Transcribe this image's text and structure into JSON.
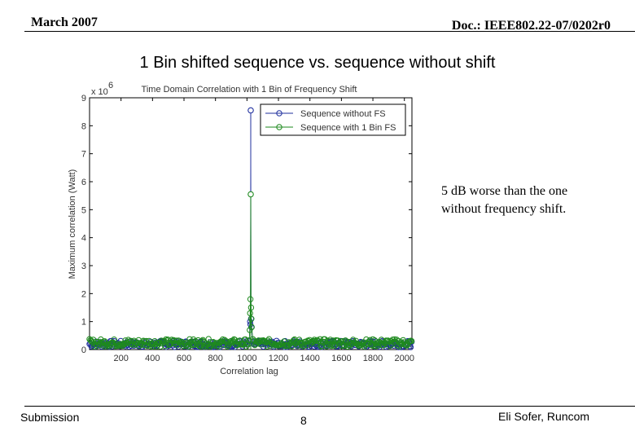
{
  "header": {
    "date": "March 2007",
    "doc": "Doc.: IEEE802.22-07/0202r0"
  },
  "slide_title": "1 Bin shifted sequence vs. sequence without shift",
  "note": "5 dB worse than the one without frequency shift.",
  "footer": {
    "left": "Submission",
    "page": "8",
    "right": "Eli Sofer, Runcom"
  },
  "chart_data": {
    "type": "line",
    "title": "Time Domain Correlation with 1 Bin of Frequency Shift",
    "xlabel": "Correlation lag",
    "ylabel": "Maximum correlation (Watt)",
    "y_multiplier_label": "x 10",
    "y_multiplier_exp": "6",
    "xlim": [
      0,
      2048
    ],
    "ylim": [
      0,
      9
    ],
    "xticks": [
      200,
      400,
      600,
      800,
      1000,
      1200,
      1400,
      1600,
      1800,
      2000
    ],
    "xtick_labels": [
      "200",
      "400",
      "600",
      "800",
      "1000",
      "1200",
      "1400",
      "1600",
      "1800",
      "2000"
    ],
    "yticks": [
      0,
      1,
      2,
      3,
      4,
      5,
      6,
      7,
      8,
      9
    ],
    "ytick_labels": [
      "0",
      "1",
      "2",
      "3",
      "4",
      "5",
      "6",
      "7",
      "8",
      "9"
    ],
    "legend_position": "top-right",
    "marker": "circle",
    "series": [
      {
        "name": "Sequence without FS",
        "color": "#1f2f9e",
        "peak_x": 1024,
        "peak_y": 8.55,
        "noise_floor": 0.25,
        "near_peak": [
          [
            1020,
            1.0
          ],
          [
            1022,
            0.9
          ],
          [
            1026,
            1.1
          ],
          [
            1028,
            0.8
          ]
        ]
      },
      {
        "name": "Sequence with 1 Bin FS",
        "color": "#1e8a1e",
        "peak_x": 1024,
        "peak_y": 5.55,
        "noise_floor": 0.3,
        "near_peak": [
          [
            1018,
            0.7
          ],
          [
            1020,
            1.3
          ],
          [
            1022,
            1.8
          ],
          [
            1026,
            1.5
          ],
          [
            1028,
            1.1
          ],
          [
            1030,
            0.8
          ]
        ]
      }
    ]
  }
}
